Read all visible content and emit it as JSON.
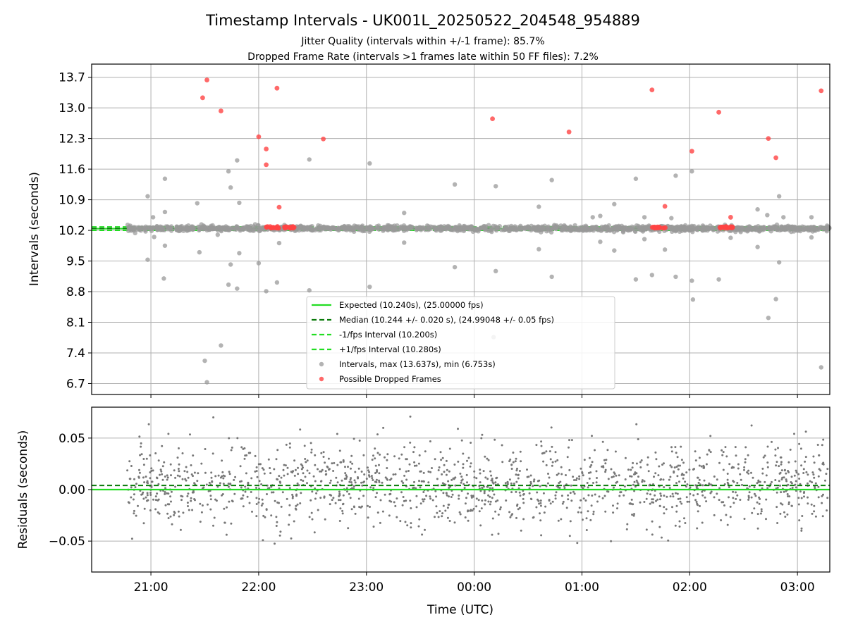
{
  "figure": {
    "title": "Timestamp Intervals - UK001L_20250522_204548_954889",
    "subtitle_1": "Jitter Quality (intervals within +/-1 frame): 85.7%",
    "subtitle_2": "Dropped Frame Rate (intervals >1 frames late within 50 FF files): 7.2%"
  },
  "colors": {
    "expected": "#22dd22",
    "median": "#0a7a0a",
    "interval_band": "#22dd22",
    "intervals": "#999999",
    "dropped": "#ff4444",
    "residuals": "#777777",
    "grid": "#b0b0b0"
  },
  "chart_data": [
    {
      "type": "scatter",
      "ylabel": "Intervals (seconds)",
      "xlabel": "",
      "grid": true,
      "xlim_hours": [
        20.45,
        27.3
      ],
      "ylim": [
        6.45,
        14.0
      ],
      "y_ticks": [
        "13.7",
        "13.0",
        "12.3",
        "11.6",
        "10.9",
        "10.2",
        "9.5",
        "8.8",
        "8.1",
        "7.4",
        "6.7"
      ],
      "y_tick_values": [
        13.7,
        13.0,
        12.3,
        11.6,
        10.9,
        10.2,
        9.5,
        8.8,
        8.1,
        7.4,
        6.7
      ],
      "lines": {
        "expected": 10.24,
        "median": 10.244,
        "minus_1fps": 10.2,
        "plus_1fps": 10.28
      },
      "legend": {
        "placement": "lower-center",
        "entries": [
          {
            "key": "expected",
            "label": "Expected (10.240s), (25.00000 fps)",
            "style": "solid-line"
          },
          {
            "key": "median",
            "label": "Median (10.244 +/- 0.020 s), (24.99048 +/- 0.05 fps)",
            "style": "dashed-line"
          },
          {
            "key": "minus",
            "label": "-1/fps Interval (10.200s)",
            "style": "dashed-line-light"
          },
          {
            "key": "plus",
            "label": "+1/fps Interval (10.280s)",
            "style": "dashed-line-light"
          },
          {
            "key": "intervals",
            "label": "Intervals, max (13.637s), min (6.753s)",
            "style": "marker-gray"
          },
          {
            "key": "dropped",
            "label": "Possible Dropped Frames",
            "style": "marker-red"
          }
        ]
      },
      "outliers_gray": [
        {
          "x": 20.97,
          "y": 10.98
        },
        {
          "x": 21.02,
          "y": 10.5
        },
        {
          "x": 21.03,
          "y": 10.05
        },
        {
          "x": 20.97,
          "y": 9.53
        },
        {
          "x": 21.13,
          "y": 11.38
        },
        {
          "x": 21.13,
          "y": 10.62
        },
        {
          "x": 21.13,
          "y": 9.85
        },
        {
          "x": 21.12,
          "y": 9.1
        },
        {
          "x": 21.43,
          "y": 10.82
        },
        {
          "x": 21.45,
          "y": 9.7
        },
        {
          "x": 21.5,
          "y": 7.22
        },
        {
          "x": 21.52,
          "y": 6.73
        },
        {
          "x": 21.62,
          "y": 10.1
        },
        {
          "x": 21.65,
          "y": 7.57
        },
        {
          "x": 21.72,
          "y": 11.55
        },
        {
          "x": 21.74,
          "y": 11.18
        },
        {
          "x": 21.74,
          "y": 9.42
        },
        {
          "x": 21.72,
          "y": 8.96
        },
        {
          "x": 21.8,
          "y": 11.8
        },
        {
          "x": 21.82,
          "y": 10.83
        },
        {
          "x": 21.82,
          "y": 9.68
        },
        {
          "x": 21.8,
          "y": 8.87
        },
        {
          "x": 22.0,
          "y": 9.45
        },
        {
          "x": 22.07,
          "y": 8.81
        },
        {
          "x": 22.17,
          "y": 9.01
        },
        {
          "x": 22.19,
          "y": 9.91
        },
        {
          "x": 22.47,
          "y": 11.82
        },
        {
          "x": 22.47,
          "y": 8.83
        },
        {
          "x": 23.03,
          "y": 11.73
        },
        {
          "x": 23.03,
          "y": 8.91
        },
        {
          "x": 23.35,
          "y": 10.6
        },
        {
          "x": 23.35,
          "y": 9.92
        },
        {
          "x": 23.82,
          "y": 11.25
        },
        {
          "x": 23.82,
          "y": 9.36
        },
        {
          "x": 24.2,
          "y": 11.21
        },
        {
          "x": 24.2,
          "y": 9.27
        },
        {
          "x": 24.18,
          "y": 7.76
        },
        {
          "x": 24.6,
          "y": 10.74
        },
        {
          "x": 24.6,
          "y": 9.77
        },
        {
          "x": 24.72,
          "y": 11.35
        },
        {
          "x": 24.72,
          "y": 9.14
        },
        {
          "x": 25.1,
          "y": 10.5
        },
        {
          "x": 25.17,
          "y": 10.53
        },
        {
          "x": 25.17,
          "y": 9.94
        },
        {
          "x": 25.3,
          "y": 10.8
        },
        {
          "x": 25.3,
          "y": 9.74
        },
        {
          "x": 25.5,
          "y": 11.38
        },
        {
          "x": 25.5,
          "y": 9.08
        },
        {
          "x": 25.58,
          "y": 10.5
        },
        {
          "x": 25.58,
          "y": 10.0
        },
        {
          "x": 25.65,
          "y": 9.18
        },
        {
          "x": 25.77,
          "y": 9.76
        },
        {
          "x": 25.83,
          "y": 10.48
        },
        {
          "x": 25.87,
          "y": 11.45
        },
        {
          "x": 25.87,
          "y": 9.14
        },
        {
          "x": 26.02,
          "y": 11.55
        },
        {
          "x": 26.02,
          "y": 10.3
        },
        {
          "x": 26.02,
          "y": 9.05
        },
        {
          "x": 26.03,
          "y": 8.62
        },
        {
          "x": 26.27,
          "y": 9.08
        },
        {
          "x": 26.38,
          "y": 10.03
        },
        {
          "x": 26.63,
          "y": 10.68
        },
        {
          "x": 26.63,
          "y": 9.82
        },
        {
          "x": 26.72,
          "y": 10.55
        },
        {
          "x": 26.73,
          "y": 8.2
        },
        {
          "x": 26.8,
          "y": 8.63
        },
        {
          "x": 26.83,
          "y": 10.98
        },
        {
          "x": 26.83,
          "y": 9.47
        },
        {
          "x": 26.87,
          "y": 10.5
        },
        {
          "x": 27.13,
          "y": 10.5
        },
        {
          "x": 27.13,
          "y": 10.04
        },
        {
          "x": 27.22,
          "y": 7.07
        }
      ],
      "dropped_frames": [
        {
          "x": 21.52,
          "y": 13.637
        },
        {
          "x": 21.48,
          "y": 13.23
        },
        {
          "x": 21.65,
          "y": 12.93
        },
        {
          "x": 22.0,
          "y": 12.34
        },
        {
          "x": 22.07,
          "y": 12.06
        },
        {
          "x": 22.07,
          "y": 11.7
        },
        {
          "x": 22.17,
          "y": 13.45
        },
        {
          "x": 22.19,
          "y": 10.73
        },
        {
          "x": 22.6,
          "y": 12.29
        },
        {
          "x": 24.17,
          "y": 12.75
        },
        {
          "x": 24.88,
          "y": 12.45
        },
        {
          "x": 25.65,
          "y": 13.41
        },
        {
          "x": 25.77,
          "y": 10.75
        },
        {
          "x": 26.02,
          "y": 12.01
        },
        {
          "x": 26.27,
          "y": 12.9
        },
        {
          "x": 26.73,
          "y": 12.3
        },
        {
          "x": 26.8,
          "y": 11.86
        },
        {
          "x": 26.38,
          "y": 10.5
        },
        {
          "x": 27.22,
          "y": 13.39
        }
      ],
      "dropped_clusters": [
        {
          "x_start": 22.07,
          "x_end": 22.33,
          "y": 10.27
        },
        {
          "x_start": 25.65,
          "x_end": 25.78,
          "y": 10.27
        },
        {
          "x_start": 26.28,
          "x_end": 26.42,
          "y": 10.27
        }
      ]
    },
    {
      "type": "scatter",
      "ylabel": "Residuals (seconds)",
      "xlabel": "Time (UTC)",
      "grid": true,
      "xlim_hours": [
        20.45,
        27.3
      ],
      "ylim": [
        -0.08,
        0.08
      ],
      "y_ticks": [
        "0.05",
        "0.00",
        "−0.05"
      ],
      "y_tick_values": [
        0.05,
        0.0,
        -0.05
      ],
      "x_ticks": [
        "21:00",
        "22:00",
        "23:00",
        "00:00",
        "01:00",
        "02:00",
        "03:00"
      ],
      "x_tick_hours": [
        21,
        22,
        23,
        24,
        25,
        26,
        27
      ],
      "lines": {
        "zero": 0.0,
        "median_offset": 0.004
      },
      "residual_std": 0.02,
      "residual_points": 1500
    }
  ]
}
